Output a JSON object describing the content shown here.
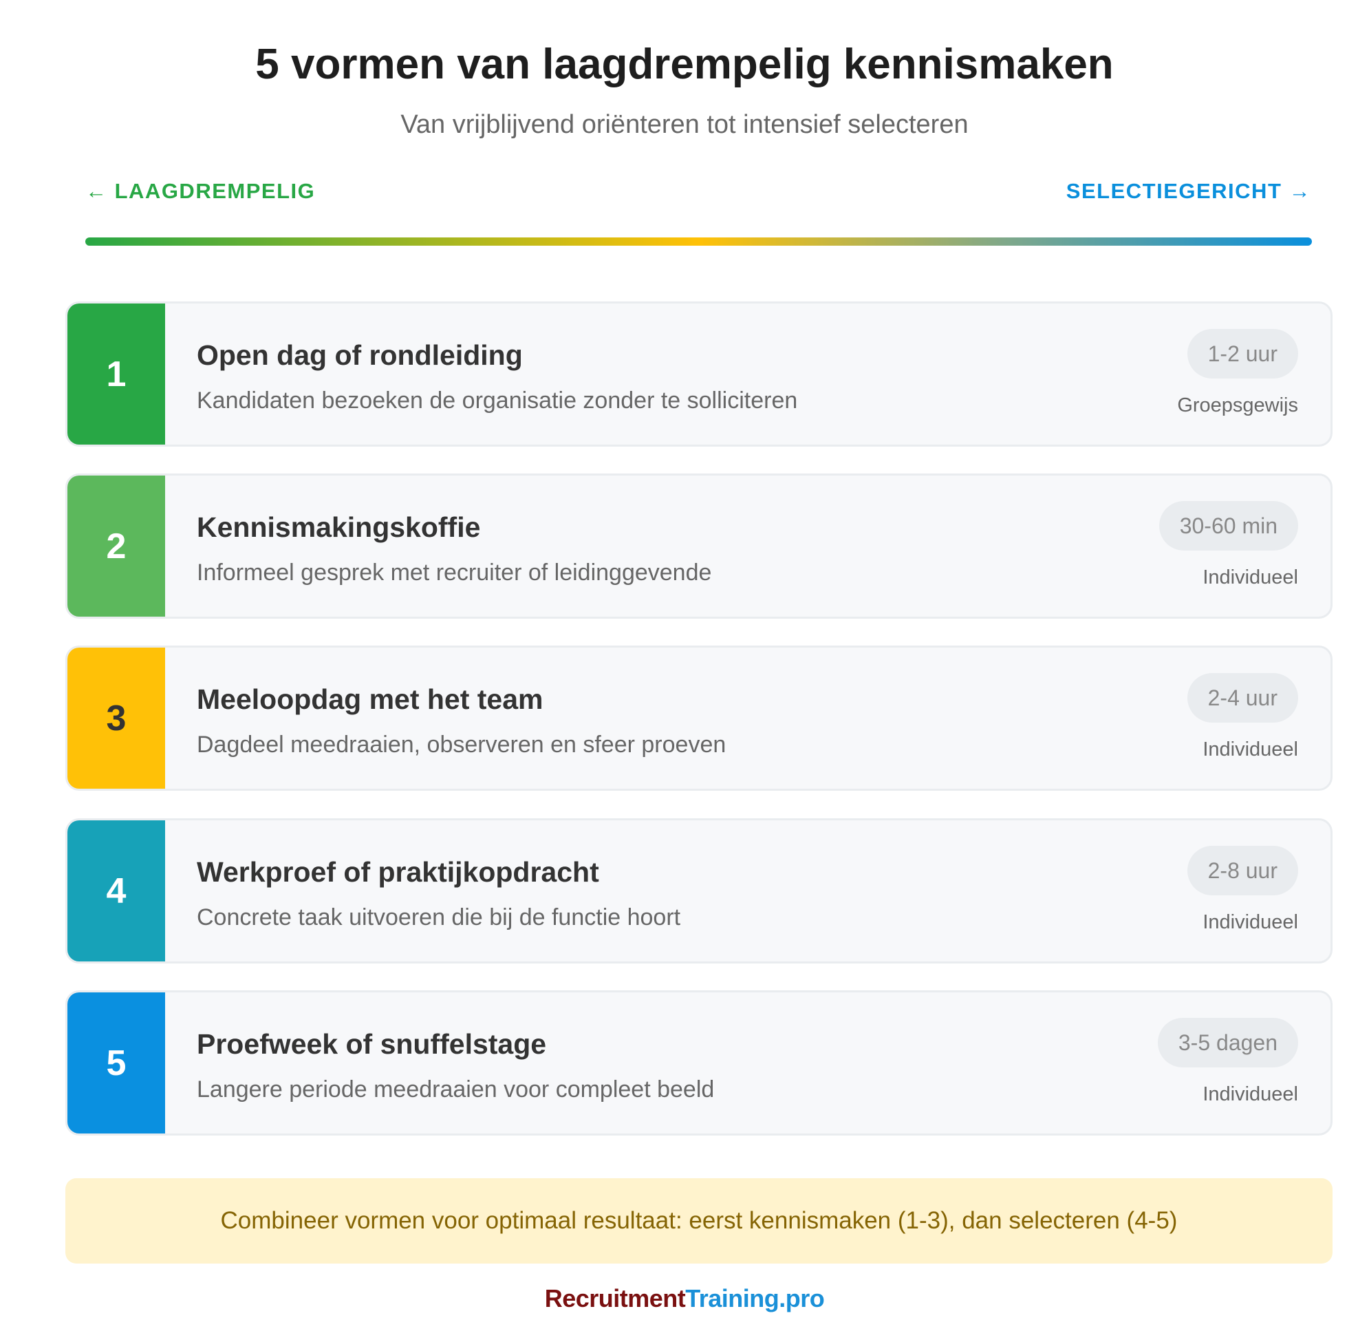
{
  "header": {
    "title": "5 vormen van laagdrempelig kennismaken",
    "subtitle": "Van vrijblijvend oriënteren tot intensief selecteren"
  },
  "scale": {
    "left_label": "← LAAGDREMPELIG",
    "right_label": "SELECTIEGERICHT →",
    "colors": {
      "start": "#28a745",
      "middle": "#ffc107",
      "end": "#0a8fdc"
    }
  },
  "items": [
    {
      "number": "1",
      "title": "Open dag of rondleiding",
      "description": "Kandidaten bezoeken de organisatie zonder te solliciteren",
      "duration": "1-2 uur",
      "format": "Groepsgewijs",
      "color": "#28a745",
      "number_color": "#ffffff"
    },
    {
      "number": "2",
      "title": "Kennismakingskoffie",
      "description": "Informeel gesprek met recruiter of leidinggevende",
      "duration": "30-60 min",
      "format": "Individueel",
      "color": "#5cb85c",
      "number_color": "#ffffff"
    },
    {
      "number": "3",
      "title": "Meeloopdag met het team",
      "description": "Dagdeel meedraaien, observeren en sfeer proeven",
      "duration": "2-4 uur",
      "format": "Individueel",
      "color": "#ffc107",
      "number_color": "#333333"
    },
    {
      "number": "4",
      "title": "Werkproef of praktijkopdracht",
      "description": "Concrete taak uitvoeren die bij de functie hoort",
      "duration": "2-8 uur",
      "format": "Individueel",
      "color": "#17a2b8",
      "number_color": "#ffffff"
    },
    {
      "number": "5",
      "title": "Proefweek of snuffelstage",
      "description": "Langere periode meedraaien voor compleet beeld",
      "duration": "3-5 dagen",
      "format": "Individueel",
      "color": "#0a90e0",
      "number_color": "#ffffff"
    }
  ],
  "note": "Combineer vormen voor optimaal resultaat: eerst kennismaken (1-3), dan selecteren (4-5)",
  "logo": {
    "part1": "Recruitment",
    "part2": "Training.pro"
  }
}
